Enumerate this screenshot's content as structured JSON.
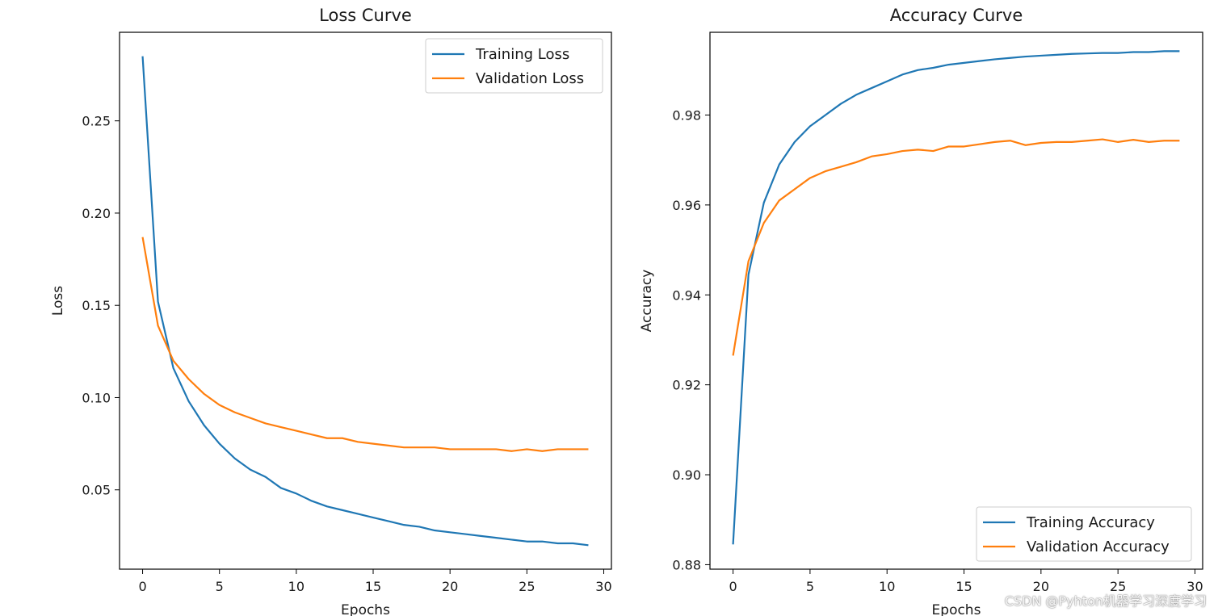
{
  "watermark": "CSDN @Pyhton机器学习深度学习",
  "chart_data": [
    {
      "type": "line",
      "title": "Loss Curve",
      "xlabel": "Epochs",
      "ylabel": "Loss",
      "xlim": [
        -1.5,
        30.5
      ],
      "ylim": [
        0.007,
        0.298
      ],
      "xticks": [
        0,
        5,
        10,
        15,
        20,
        25,
        30
      ],
      "yticks": [
        0.05,
        0.1,
        0.15,
        0.2,
        0.25
      ],
      "ytick_labels": [
        "0.05",
        "0.10",
        "0.15",
        "0.20",
        "0.25"
      ],
      "legend_position": "top-right",
      "grid": false,
      "x": [
        0,
        1,
        2,
        3,
        4,
        5,
        6,
        7,
        8,
        9,
        10,
        11,
        12,
        13,
        14,
        15,
        16,
        17,
        18,
        19,
        20,
        21,
        22,
        23,
        24,
        25,
        26,
        27,
        28,
        29
      ],
      "series": [
        {
          "name": "Training Loss",
          "color": "#1f77b4",
          "values": [
            0.285,
            0.152,
            0.116,
            0.098,
            0.085,
            0.075,
            0.067,
            0.061,
            0.057,
            0.051,
            0.048,
            0.044,
            0.041,
            0.039,
            0.037,
            0.035,
            0.033,
            0.031,
            0.03,
            0.028,
            0.027,
            0.026,
            0.025,
            0.024,
            0.023,
            0.022,
            0.022,
            0.021,
            0.021,
            0.02
          ]
        },
        {
          "name": "Validation Loss",
          "color": "#ff7f0e",
          "values": [
            0.187,
            0.139,
            0.12,
            0.11,
            0.102,
            0.096,
            0.092,
            0.089,
            0.086,
            0.084,
            0.082,
            0.08,
            0.078,
            0.078,
            0.076,
            0.075,
            0.074,
            0.073,
            0.073,
            0.073,
            0.072,
            0.072,
            0.072,
            0.072,
            0.071,
            0.072,
            0.071,
            0.072,
            0.072,
            0.072
          ]
        }
      ]
    },
    {
      "type": "line",
      "title": "Accuracy Curve",
      "xlabel": "Epochs",
      "ylabel": "Accuracy",
      "xlim": [
        -1.5,
        30.5
      ],
      "ylim": [
        0.879,
        0.9984
      ],
      "xticks": [
        0,
        5,
        10,
        15,
        20,
        25,
        30
      ],
      "yticks": [
        0.88,
        0.9,
        0.92,
        0.94,
        0.96,
        0.98
      ],
      "ytick_labels": [
        "0.88",
        "0.90",
        "0.92",
        "0.94",
        "0.96",
        "0.98"
      ],
      "legend_position": "bottom-right",
      "grid": false,
      "x": [
        0,
        1,
        2,
        3,
        4,
        5,
        6,
        7,
        8,
        9,
        10,
        11,
        12,
        13,
        14,
        15,
        16,
        17,
        18,
        19,
        20,
        21,
        22,
        23,
        24,
        25,
        26,
        27,
        28,
        29
      ],
      "series": [
        {
          "name": "Training Accuracy",
          "color": "#1f77b4",
          "values": [
            0.8845,
            0.9445,
            0.9605,
            0.969,
            0.974,
            0.9775,
            0.98,
            0.9825,
            0.9845,
            0.986,
            0.9875,
            0.989,
            0.99,
            0.9905,
            0.9912,
            0.9916,
            0.992,
            0.9924,
            0.9927,
            0.993,
            0.9932,
            0.9934,
            0.9936,
            0.9937,
            0.9938,
            0.9938,
            0.994,
            0.994,
            0.9942,
            0.9942
          ]
        },
        {
          "name": "Validation Accuracy",
          "color": "#ff7f0e",
          "values": [
            0.9265,
            0.9475,
            0.956,
            0.961,
            0.9635,
            0.966,
            0.9675,
            0.9685,
            0.9695,
            0.9708,
            0.9713,
            0.972,
            0.9723,
            0.972,
            0.973,
            0.973,
            0.9735,
            0.974,
            0.9743,
            0.9733,
            0.9738,
            0.974,
            0.974,
            0.9743,
            0.9746,
            0.974,
            0.9745,
            0.974,
            0.9743,
            0.9743
          ]
        }
      ]
    }
  ]
}
